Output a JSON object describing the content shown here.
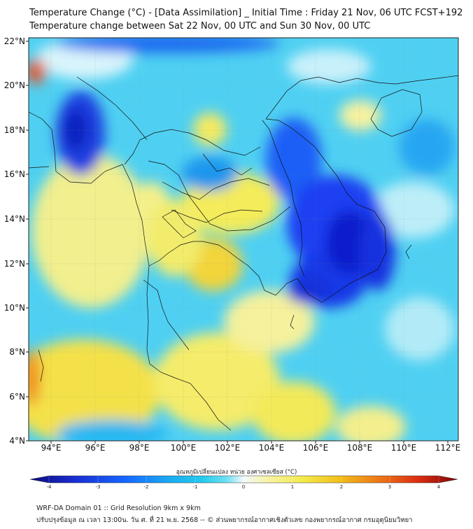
{
  "header": {
    "title_line1": "Temperature Change (°C) - [Data Assimilation] _ Initial Time : Friday 21 Nov, 06 UTC FCST+192",
    "title_line2": "Temperature change between Sat 22 Nov, 00 UTC and Sun 30 Nov, 00 UTC"
  },
  "map": {
    "lat_labels": [
      "22°N",
      "20°N",
      "18°N",
      "16°N",
      "14°N",
      "12°N",
      "10°N",
      "8°N",
      "6°N",
      "4°N"
    ],
    "lon_labels": [
      "94°E",
      "96°E",
      "98°E",
      "100°E",
      "102°E",
      "104°E",
      "106°E",
      "108°E",
      "110°E",
      "112°E"
    ],
    "lat_range": [
      4,
      22.2
    ],
    "lon_range": [
      93,
      112.5
    ]
  },
  "colorbar": {
    "title": "อุณหภูมิเปลี่ยนแปลง หน่วย องศาเซลเซียส (°C)",
    "ticks": [
      "-4",
      "-3",
      "-2",
      "-1",
      "0",
      "1",
      "2",
      "3",
      "4"
    ],
    "range": [
      -4,
      4
    ],
    "colors": [
      "#0b0c7a",
      "#1a2bd0",
      "#1565ff",
      "#1aa8f2",
      "#22c9ee",
      "#6fe0f2",
      "#f5f8fb",
      "#f6f4a0",
      "#f4e94a",
      "#f2c21c",
      "#ee7416",
      "#db2b12",
      "#7d0707"
    ]
  },
  "footer": {
    "line1": "WRF-DA Domain 01 :: Grid Resolution 9km x 9km",
    "line2": "ปรับปรุงข้อมูล ณ เวลา 13:00น. วัน ศ. ที่ 21 พ.ย. 2568 -- © ส่วนพยากรณ์อากาศเชิงตัวเลข กองพยากรณ์อากาศ กรมอุตุนิยมวิทยา"
  }
}
